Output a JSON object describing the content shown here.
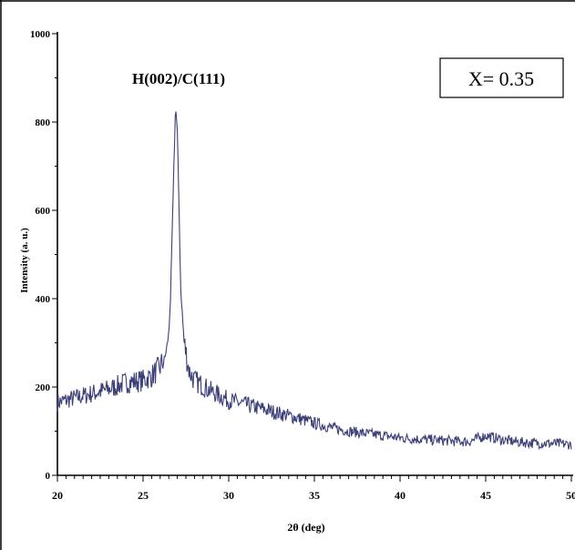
{
  "chart_data": {
    "type": "line",
    "title": "",
    "xlabel": "2θ (deg)",
    "ylabel": "Intensity (a. u.)",
    "xlim": [
      20,
      50
    ],
    "ylim": [
      0,
      1000
    ],
    "x_ticks": [
      20,
      25,
      30,
      35,
      40,
      45,
      50
    ],
    "x_tick_labels": [
      "20",
      "25",
      "30",
      "35",
      "40",
      "45",
      "50"
    ],
    "y_ticks": [
      0,
      200,
      400,
      600,
      800,
      1000
    ],
    "y_tick_labels": [
      "0",
      "200",
      "400",
      "600",
      "800",
      "1000"
    ],
    "grid": false,
    "series": [
      {
        "color": "#3c3f78",
        "x": [
          20,
          21,
          22,
          23,
          24,
          25,
          25.5,
          26,
          26.3,
          26.5,
          26.6,
          26.7,
          26.8,
          26.9,
          27.0,
          27.1,
          27.2,
          27.4,
          27.7,
          28,
          29,
          30,
          31,
          32,
          33,
          34,
          35,
          36,
          37,
          38,
          39,
          40,
          41,
          42,
          43,
          44,
          45,
          46,
          47,
          48,
          49,
          50
        ],
        "values": [
          165,
          175,
          185,
          195,
          210,
          215,
          225,
          245,
          270,
          320,
          400,
          550,
          700,
          840,
          780,
          600,
          420,
          300,
          235,
          215,
          190,
          170,
          160,
          150,
          140,
          130,
          118,
          108,
          100,
          95,
          90,
          85,
          82,
          80,
          78,
          76,
          90,
          80,
          75,
          73,
          72,
          70
        ]
      }
    ],
    "annotations": [
      {
        "text": "H(002)/C(111)",
        "x": 26.8,
        "y": 900
      }
    ],
    "legend_box": {
      "text": "X= 0.35",
      "placement": "top-right"
    }
  }
}
